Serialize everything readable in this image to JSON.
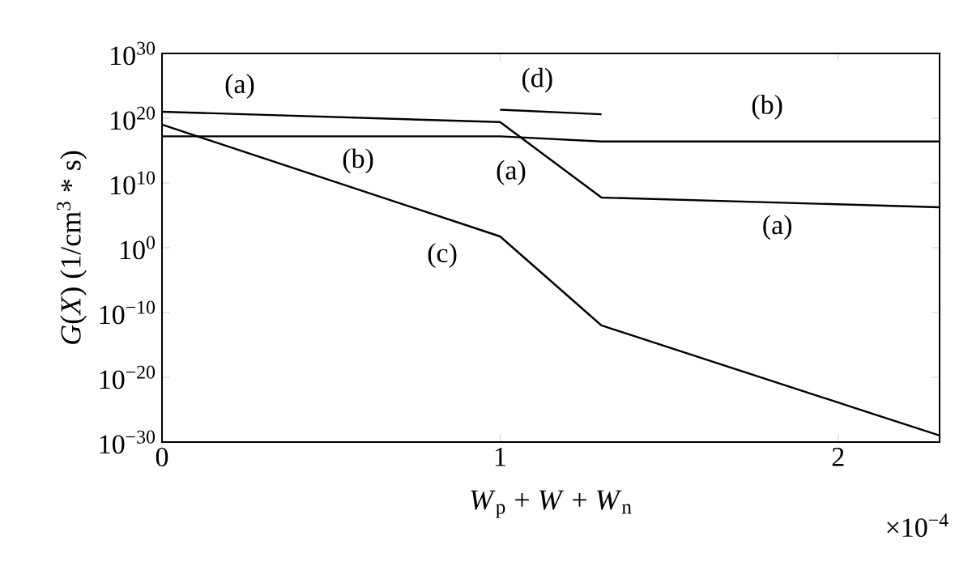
{
  "chart_data": {
    "type": "line",
    "xlabel": "*W*$_{p}$ + *W* + *W*$_{n}$",
    "ylabel": "*G*(*X*) (1/cm$^{3}$ * s)",
    "log": "y",
    "marker": "none",
    "line_style": "solid",
    "xlim": [
      0,
      2.3
    ],
    "ylim": [
      1e-30,
      1e+30
    ],
    "xticks": [
      0,
      1,
      2
    ],
    "yticks": [
      {
        "value": 1e-30,
        "label": "10$^{−30}$"
      },
      {
        "value": 1e-20,
        "label": "10$^{−20}$"
      },
      {
        "value": 1e-10,
        "label": "10$^{−10}$"
      },
      {
        "value": 1,
        "label": "10$^{0}$"
      },
      {
        "value": 10000000000.0,
        "label": "10$^{10}$"
      },
      {
        "value": 1e+20,
        "label": "10$^{20}$"
      },
      {
        "value": 1e+30,
        "label": "10$^{30}$"
      }
    ],
    "series": [
      {
        "color": "#000000",
        "x": [
          0,
          1,
          1.3,
          2.3
        ],
        "values": [
          1e+21,
          2.5e+19,
          56000000.0,
          1800000.0
        ]
      },
      {
        "color": "#000000",
        "x": [
          0,
          1,
          1.3,
          2.3
        ],
        "values": [
          1.6e+17,
          1.6e+17,
          2.5e+16,
          2.5e+16
        ]
      },
      {
        "color": "#000000",
        "x": [
          0,
          1,
          1.3,
          2.3
        ],
        "values": [
          1e+19,
          56,
          1e-12,
          1e-29
        ]
      },
      {
        "color": "#000000",
        "x": [
          1,
          1.3
        ],
        "values": [
          2e+21,
          4e+20
        ]
      }
    ],
    "annotations": [
      {
        "text": "(a)",
        "x": 0.23,
        "y": 4e+20
      },
      {
        "text": "(d)",
        "x": 1.11,
        "y": 1.1e+21
      },
      {
        "text": "(b)",
        "x": 1.79,
        "y": 2.5e+16
      },
      {
        "text": "(b)",
        "x": 0.58,
        "y": 1.6e+17
      },
      {
        "text": "(a)",
        "x": 1.09,
        "y": 8000000000000000.0
      },
      {
        "text": "(a)",
        "x": 1.82,
        "y": 9000000.0
      },
      {
        "text": "(c)",
        "x": 0.92,
        "y": 1300.0
      },
      "×10$^{−4}$"
    ]
  }
}
